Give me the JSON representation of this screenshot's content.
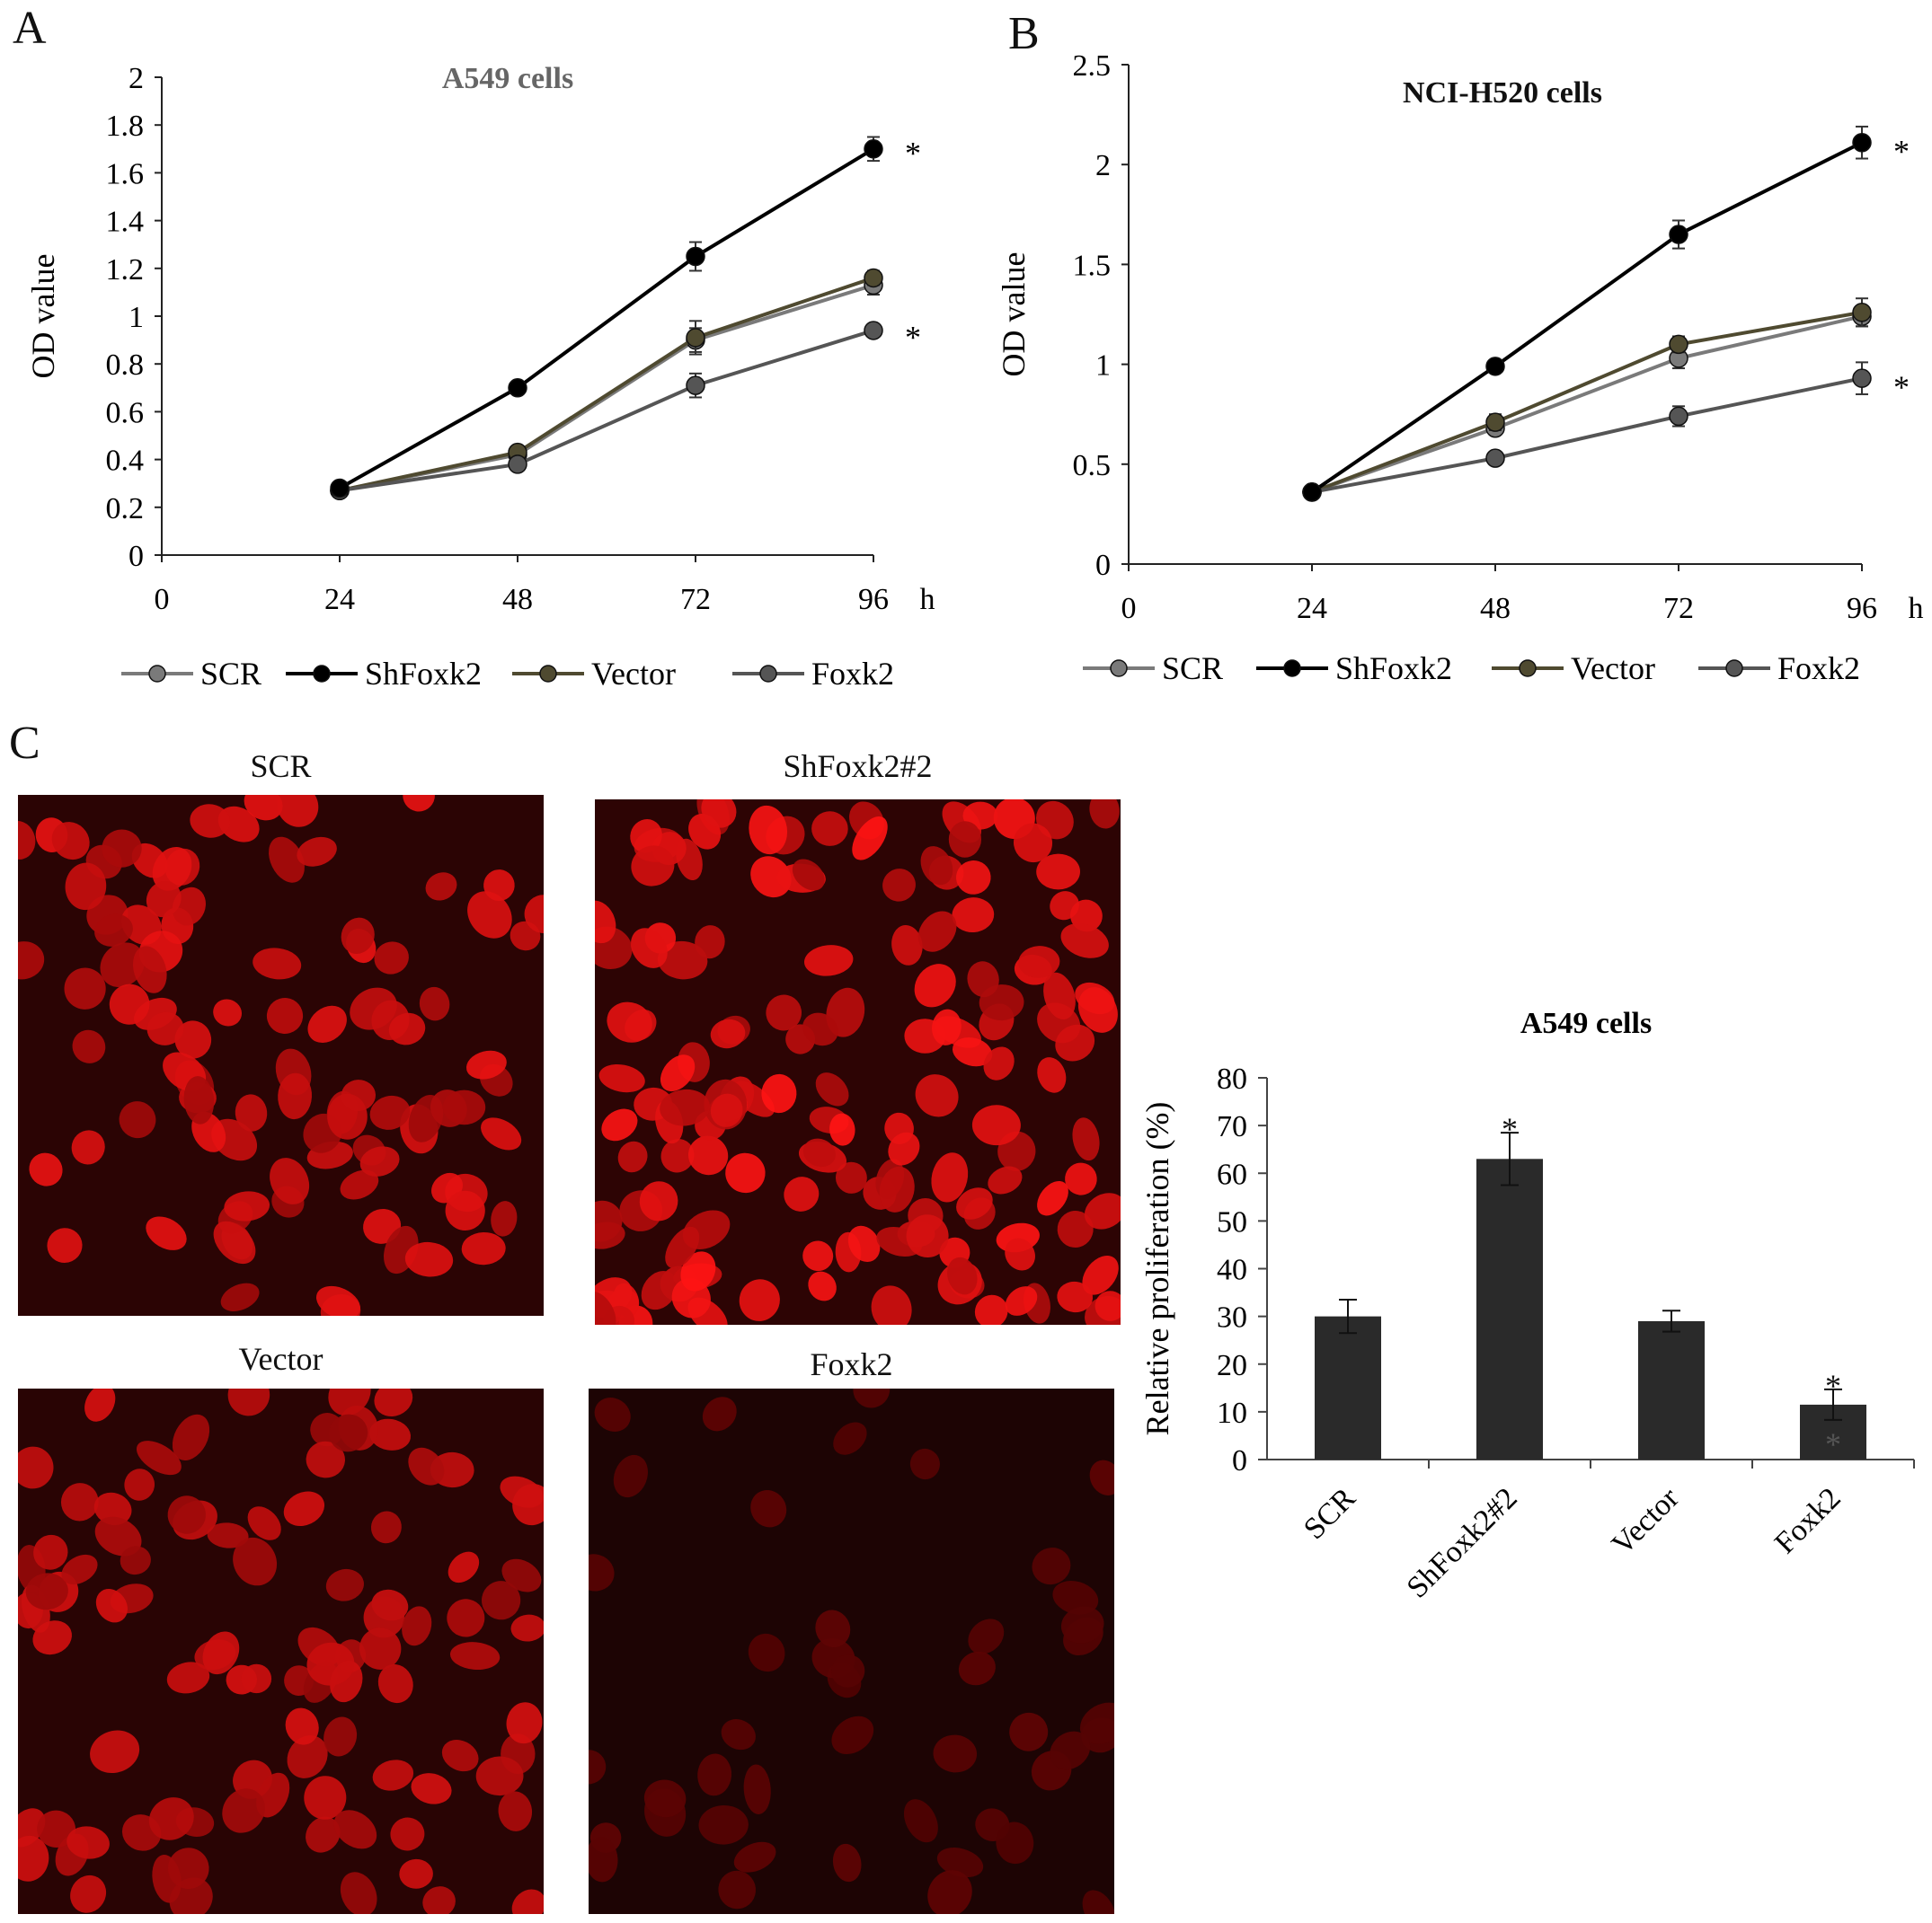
{
  "panels": {
    "a": "A",
    "b": "B",
    "c": "C"
  },
  "colors": {
    "SCR": "#7a7a7a",
    "ShFoxk2": "#000000",
    "Vector": "#4f4a30",
    "Foxk2": "#555555",
    "bar": "#2a2a2a",
    "nucleus": "#ff1a1a"
  },
  "chart_data": [
    {
      "type": "line",
      "title": "A549 cells",
      "xlabel": "h",
      "ylabel": "OD   value",
      "x": [
        24,
        48,
        72,
        96
      ],
      "xticks": [
        "0",
        "24",
        "48",
        "72",
        "96"
      ],
      "yticks": [
        "0",
        "0.2",
        "0.4",
        "0.6",
        "0.8",
        "1",
        "1.2",
        "1.4",
        "1.6",
        "1.8",
        "2"
      ],
      "xlim": [
        0,
        96
      ],
      "ylim": [
        0,
        2
      ],
      "legend": "bottom",
      "series": [
        {
          "name": "SCR",
          "values": [
            0.27,
            0.42,
            0.9,
            1.13
          ],
          "err": [
            0.02,
            0.02,
            0.05,
            0.04
          ]
        },
        {
          "name": "ShFoxk2",
          "values": [
            0.28,
            0.7,
            1.25,
            1.7
          ],
          "err": [
            0.02,
            0.02,
            0.06,
            0.05
          ]
        },
        {
          "name": "Vector",
          "values": [
            0.27,
            0.43,
            0.91,
            1.16
          ],
          "err": [
            0.02,
            0.02,
            0.07,
            0.03
          ]
        },
        {
          "name": "Foxk2",
          "values": [
            0.27,
            0.38,
            0.71,
            0.94
          ],
          "err": [
            0.02,
            0.02,
            0.05,
            0.02
          ]
        }
      ],
      "annotations": [
        {
          "text": "*",
          "x": 96,
          "y": 1.72
        },
        {
          "text": "*",
          "x": 96,
          "y": 0.95
        }
      ]
    },
    {
      "type": "line",
      "title": "NCI-H520 cells",
      "xlabel": "h",
      "ylabel": "OD   value",
      "x": [
        24,
        48,
        72,
        96
      ],
      "xticks": [
        "0",
        "24",
        "48",
        "72",
        "96"
      ],
      "yticks": [
        "0",
        "0.5",
        "1",
        "1.5",
        "2",
        "2.5"
      ],
      "xlim": [
        0,
        96
      ],
      "ylim": [
        0,
        2.5
      ],
      "legend": "bottom",
      "series": [
        {
          "name": "SCR",
          "values": [
            0.36,
            0.68,
            1.03,
            1.24
          ],
          "err": [
            0.02,
            0.03,
            0.05,
            0.05
          ]
        },
        {
          "name": "ShFoxk2",
          "values": [
            0.36,
            0.99,
            1.65,
            2.11
          ],
          "err": [
            0.02,
            0.02,
            0.07,
            0.08
          ]
        },
        {
          "name": "Vector",
          "values": [
            0.36,
            0.71,
            1.1,
            1.26
          ],
          "err": [
            0.02,
            0.04,
            0.04,
            0.07
          ]
        },
        {
          "name": "Foxk2",
          "values": [
            0.36,
            0.53,
            0.74,
            0.93
          ],
          "err": [
            0.02,
            0.02,
            0.05,
            0.08
          ]
        }
      ],
      "annotations": [
        {
          "text": "*",
          "x": 96,
          "y": 2.11
        },
        {
          "text": "*",
          "x": 96,
          "y": 0.93
        }
      ]
    },
    {
      "type": "bar",
      "title": "A549 cells",
      "xlabel": "",
      "ylabel": "Relative proliferation (%)",
      "categories": [
        "SCR",
        "ShFoxk2#2",
        "Vector",
        "Foxk2"
      ],
      "values": [
        30,
        63,
        29,
        11.5
      ],
      "err": [
        3.5,
        5.5,
        2.2,
        3.2
      ],
      "yticks": [
        "0",
        "10",
        "20",
        "30",
        "40",
        "50",
        "60",
        "70",
        "80"
      ],
      "ylim": [
        0,
        80
      ],
      "annotations": [
        {
          "text": "*",
          "category": "ShFoxk2#2"
        },
        {
          "text": "*",
          "category": "Foxk2"
        },
        {
          "text": "*",
          "category": "Foxk2"
        }
      ]
    }
  ],
  "images": [
    {
      "title": "SCR",
      "brightness": 0.9
    },
    {
      "title": "ShFoxk2#2",
      "brightness": 1.0
    },
    {
      "title": "Vector",
      "brightness": 0.8
    },
    {
      "title": "Foxk2",
      "brightness": 0.18
    }
  ]
}
